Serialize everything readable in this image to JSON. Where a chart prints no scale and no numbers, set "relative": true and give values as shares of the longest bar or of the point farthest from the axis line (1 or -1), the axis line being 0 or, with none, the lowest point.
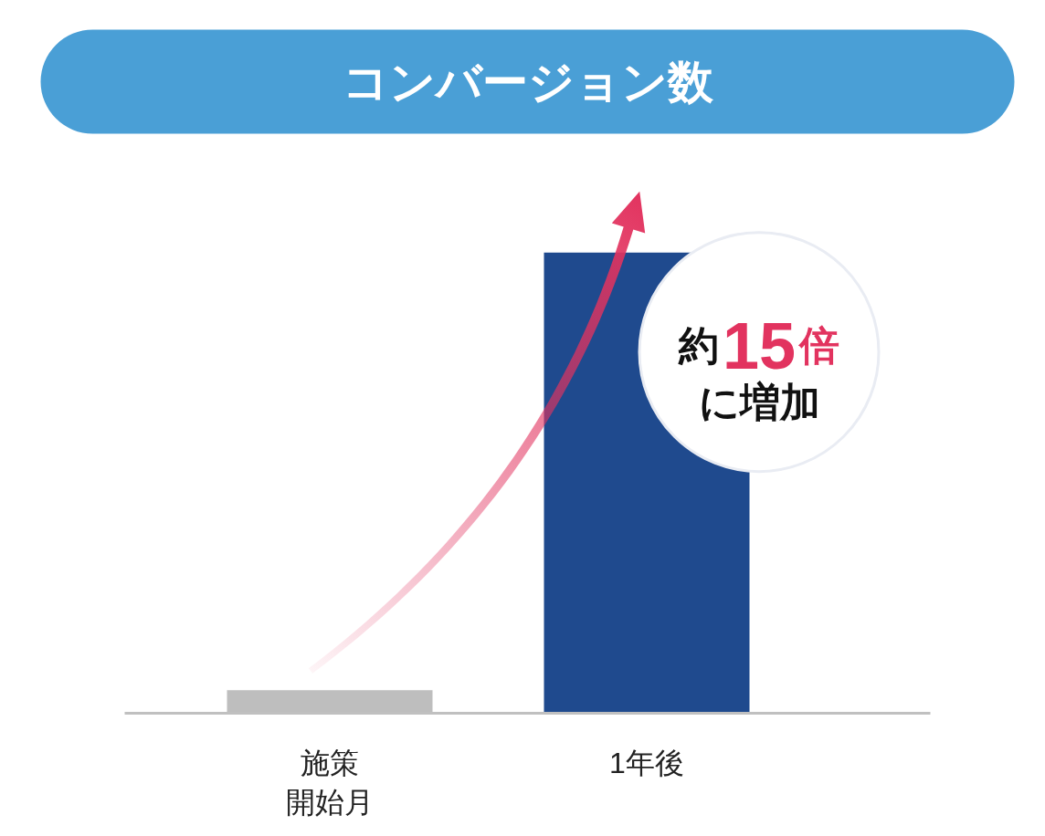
{
  "chart_data": {
    "type": "bar",
    "title": "コンバージョン数",
    "categories": [
      "施策開始月",
      "1年後"
    ],
    "values": [
      0.05,
      1
    ],
    "colors": [
      "#bebebe",
      "#1f4a8e"
    ],
    "relative": true,
    "annotations": [
      "約15倍",
      "に増加"
    ]
  }
}
